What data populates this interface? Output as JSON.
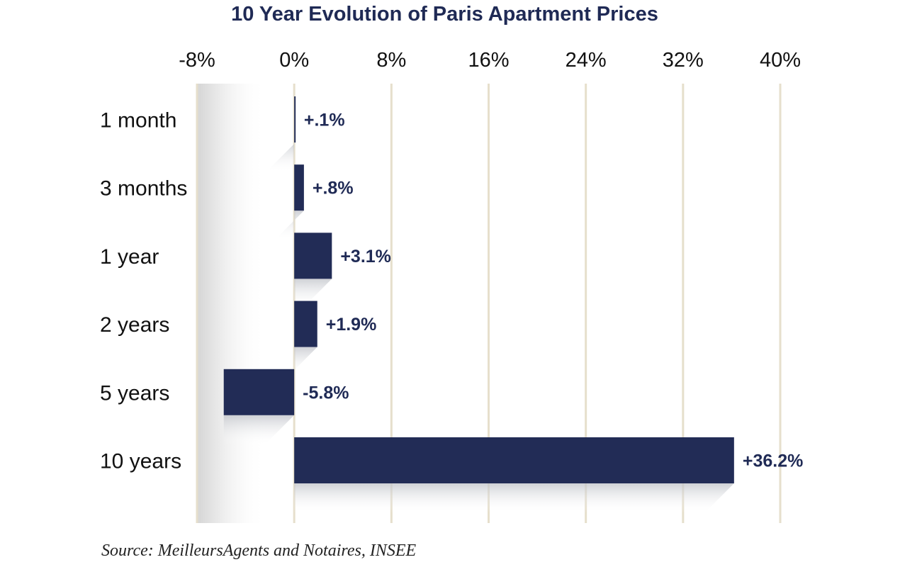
{
  "chart_data": {
    "type": "bar",
    "orientation": "horizontal",
    "title": "10 Year Evolution of Paris Apartment Prices",
    "categories": [
      "1 month",
      "3 months",
      "1 year",
      "2 years",
      "5 years",
      "10 years"
    ],
    "values": [
      0.1,
      0.8,
      3.1,
      1.9,
      -5.8,
      36.2
    ],
    "data_labels": [
      "+.1%",
      "+.8%",
      "+3.1%",
      "+1.9%",
      "-5.8%",
      "+36.2%"
    ],
    "x_ticks": [
      -8,
      0,
      8,
      16,
      24,
      32,
      40
    ],
    "x_tick_labels": [
      "-8%",
      "0%",
      "8%",
      "16%",
      "24%",
      "32%",
      "40%"
    ],
    "xlim": [
      -8,
      40
    ],
    "grid": true,
    "x_axis_position": "top",
    "bar_color": "#222c56",
    "gridline_color": "#e6dfcc",
    "title_color": "#1f2a55",
    "source": "Source: MeilleursAgents and Notaires, INSEE"
  }
}
